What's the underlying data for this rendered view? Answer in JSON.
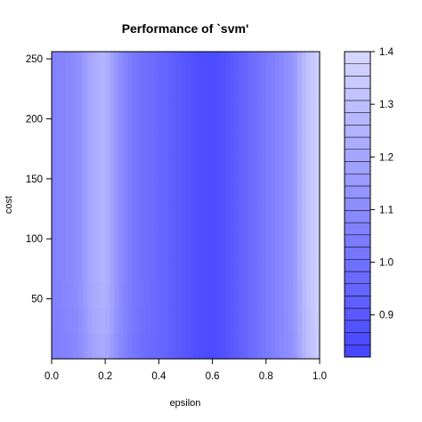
{
  "chart_data": {
    "type": "heatmap",
    "title": "Performance of `svm'",
    "xlabel": "epsilon",
    "ylabel": "cost",
    "xlim": [
      0,
      1
    ],
    "ylim": [
      0,
      256
    ],
    "x_ticks": [
      "0.0",
      "0.2",
      "0.4",
      "0.6",
      "0.8",
      "1.0"
    ],
    "y_ticks": [
      "50",
      "100",
      "150",
      "200",
      "250"
    ],
    "colorbar": {
      "min": 0.82,
      "max": 1.4,
      "levels": 25,
      "ticks": [
        "0.9",
        "1.0",
        "1.1",
        "1.2",
        "1.3",
        "1.4"
      ],
      "low_color": "#4444ff",
      "high_color": "#d8d8ff"
    },
    "epsilon": [
      0.0,
      0.05,
      0.1,
      0.15,
      0.2,
      0.25,
      0.3,
      0.35,
      0.4,
      0.45,
      0.5,
      0.55,
      0.6,
      0.65,
      0.7,
      0.75,
      0.8,
      0.85,
      0.9,
      0.95,
      1.0
    ],
    "cost": [
      1,
      64,
      128,
      192,
      256
    ],
    "error": [
      [
        1.05,
        1.06,
        1.09,
        1.18,
        1.22,
        1.1,
        1.02,
        0.98,
        0.96,
        0.93,
        0.89,
        0.86,
        0.85,
        0.88,
        0.93,
        0.98,
        1.03,
        1.08,
        1.12,
        1.28,
        1.36
      ],
      [
        1.06,
        1.08,
        1.11,
        1.22,
        1.26,
        1.12,
        1.03,
        0.99,
        0.96,
        0.93,
        0.89,
        0.86,
        0.85,
        0.88,
        0.93,
        0.98,
        1.03,
        1.08,
        1.14,
        1.3,
        1.38
      ],
      [
        1.06,
        1.08,
        1.11,
        1.22,
        1.26,
        1.12,
        1.03,
        0.99,
        0.96,
        0.93,
        0.89,
        0.86,
        0.85,
        0.88,
        0.93,
        0.98,
        1.03,
        1.08,
        1.14,
        1.3,
        1.38
      ],
      [
        1.06,
        1.08,
        1.11,
        1.22,
        1.26,
        1.12,
        1.03,
        0.99,
        0.96,
        0.93,
        0.89,
        0.86,
        0.85,
        0.88,
        0.93,
        0.98,
        1.03,
        1.08,
        1.14,
        1.3,
        1.38
      ],
      [
        1.06,
        1.08,
        1.11,
        1.22,
        1.26,
        1.12,
        1.03,
        0.99,
        0.96,
        0.93,
        0.89,
        0.86,
        0.85,
        0.88,
        0.93,
        0.98,
        1.03,
        1.08,
        1.14,
        1.3,
        1.38
      ]
    ]
  }
}
